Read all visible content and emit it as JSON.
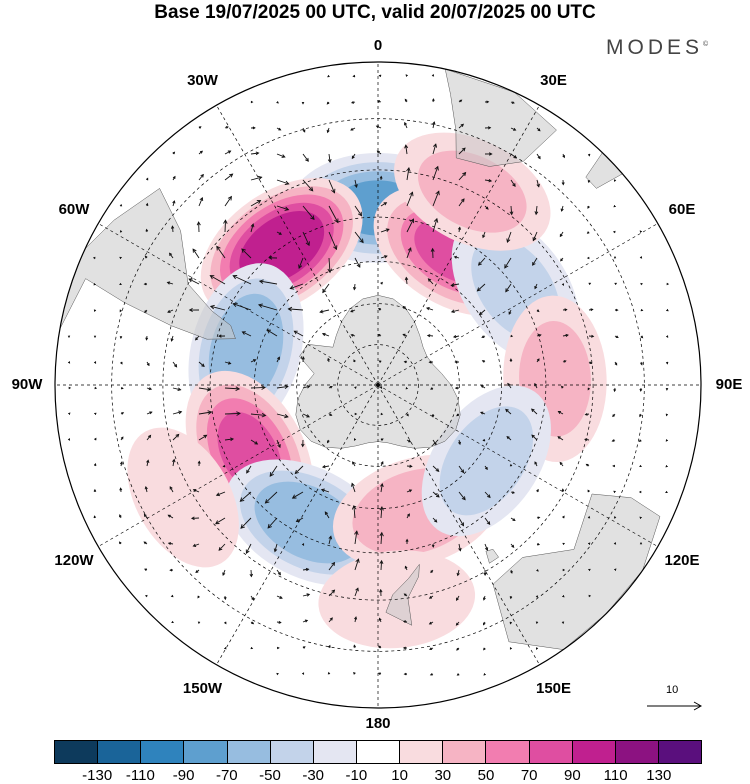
{
  "title": "Base 19/07/2025 00 UTC, valid 20/07/2025 00 UTC",
  "brand": "MODES",
  "brand_mark": "©",
  "map": {
    "projection": "south-polar-stereographic",
    "longitude_labels": [
      {
        "text": "0",
        "lon": 0
      },
      {
        "text": "30E",
        "lon": 30
      },
      {
        "text": "60E",
        "lon": 60
      },
      {
        "text": "90E",
        "lon": 90
      },
      {
        "text": "120E",
        "lon": 120
      },
      {
        "text": "150E",
        "lon": 150
      },
      {
        "text": "180",
        "lon": 180
      },
      {
        "text": "150W",
        "lon": -150
      },
      {
        "text": "120W",
        "lon": -120
      },
      {
        "text": "90W",
        "lon": -90
      },
      {
        "text": "60W",
        "lon": -60
      },
      {
        "text": "30W",
        "lon": -30
      }
    ],
    "anomaly_centers": [
      {
        "lon": 0,
        "lat": -48,
        "value": -75
      },
      {
        "lon": -35,
        "lat": -50,
        "value": 110
      },
      {
        "lon": 30,
        "lat": -53,
        "value": 75
      },
      {
        "lon": 55,
        "lat": -50,
        "value": -35
      },
      {
        "lon": 88,
        "lat": -48,
        "value": 35
      },
      {
        "lon": -75,
        "lat": -57,
        "value": -70
      },
      {
        "lon": -118,
        "lat": -55,
        "value": 75
      },
      {
        "lon": -153,
        "lat": -53,
        "value": -70
      },
      {
        "lon": 163,
        "lat": -58,
        "value": 50
      },
      {
        "lon": 125,
        "lat": -58,
        "value": -40
      },
      {
        "lon": 175,
        "lat": -40,
        "value": 20
      },
      {
        "lon": -120,
        "lat": -38,
        "value": 15
      },
      {
        "lon": 26,
        "lat": -40,
        "value": 35
      }
    ],
    "vector_scale": {
      "label": "10",
      "value": 10
    }
  },
  "colorbar": {
    "colors": [
      "#0d3a5c",
      "#1a6499",
      "#2f83bd",
      "#5e9fcf",
      "#97bde0",
      "#c3d3ea",
      "#e4e6f2",
      "#ffffff",
      "#f9dcdf",
      "#f6b4c4",
      "#f27db0",
      "#df4ea1",
      "#c0208f",
      "#8c1281",
      "#5a0f7d"
    ],
    "tick_labels": [
      "-130",
      "-110",
      "-90",
      "-70",
      "-50",
      "-30",
      "-10",
      "10",
      "30",
      "50",
      "70",
      "90",
      "110",
      "130"
    ]
  }
}
